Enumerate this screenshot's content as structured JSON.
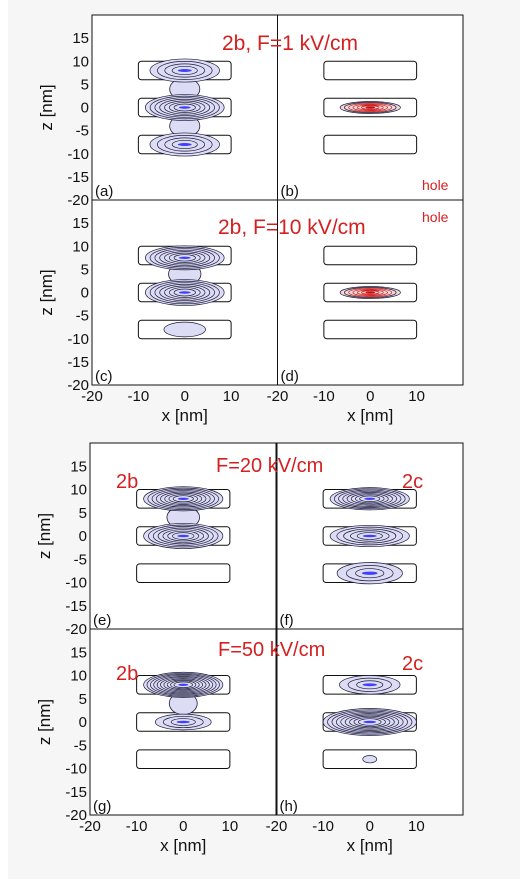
{
  "chart_data": {
    "type": "contour",
    "figures": [
      {
        "panels": [
          {
            "id": "a",
            "label": "(a)",
            "row": 0,
            "col": 0,
            "title": "2b, F=1 kV/cm",
            "particle": "electron",
            "blobs": [
              {
                "z": 8,
                "rx": 7.5,
                "rz": 2.5,
                "levels": 4
              },
              {
                "z": 0,
                "rx": 8.5,
                "rz": 2.8,
                "levels": 7
              },
              {
                "z": -8,
                "rx": 7.5,
                "rz": 2.5,
                "levels": 4
              }
            ],
            "neck": [
              {
                "z": 4,
                "w": 6.5
              },
              {
                "z": -4,
                "w": 6.5
              }
            ]
          },
          {
            "id": "b",
            "label": "(b)",
            "row": 0,
            "col": 1,
            "annotation": "hole",
            "particle": "hole",
            "blobs": [
              {
                "z": 0,
                "rx": 6.5,
                "rz": 1.3,
                "levels": 6
              }
            ],
            "neck": []
          },
          {
            "id": "c",
            "label": "(c)",
            "row": 1,
            "col": 0,
            "title": "2b, F=10 kV/cm",
            "particle": "electron",
            "blobs": [
              {
                "z": 7.5,
                "rx": 8.5,
                "rz": 2.6,
                "levels": 7
              },
              {
                "z": 0,
                "rx": 8.5,
                "rz": 2.8,
                "levels": 7
              },
              {
                "z": -8,
                "rx": 4.5,
                "rz": 1.6,
                "levels": 1
              }
            ],
            "neck": [
              {
                "z": 4,
                "w": 7
              }
            ]
          },
          {
            "id": "d",
            "label": "(d)",
            "row": 1,
            "col": 1,
            "annotation": "hole",
            "particle": "hole",
            "blobs": [
              {
                "z": 0,
                "rx": 6.5,
                "rz": 1.3,
                "levels": 6
              }
            ],
            "neck": []
          }
        ],
        "x_ticks": [
          "-20",
          "-10",
          "0",
          "10"
        ],
        "z_ticks": [
          "15",
          "10",
          "5",
          "0",
          "-5",
          "-10",
          "-15",
          "-20"
        ],
        "xlabel": "x [nm]",
        "ylabel": "z [nm]"
      },
      {
        "panels": [
          {
            "id": "e",
            "label": "(e)",
            "row": 0,
            "col": 0,
            "title": "F=20 kV/cm",
            "tag": "2b",
            "particle": "electron",
            "blobs": [
              {
                "z": 8,
                "rx": 8.5,
                "rz": 2.6,
                "levels": 8
              },
              {
                "z": 0,
                "rx": 8.5,
                "rz": 2.7,
                "levels": 7
              }
            ],
            "neck": [
              {
                "z": 4,
                "w": 7
              }
            ]
          },
          {
            "id": "f",
            "label": "(f)",
            "row": 0,
            "col": 1,
            "tag": "2c",
            "particle": "electron",
            "blobs": [
              {
                "z": 8,
                "rx": 8.5,
                "rz": 2.4,
                "levels": 8
              },
              {
                "z": 0,
                "rx": 8.5,
                "rz": 2.3,
                "levels": 5
              },
              {
                "z": -8,
                "rx": 7,
                "rz": 2.3,
                "levels": 3
              }
            ],
            "neck": []
          },
          {
            "id": "g",
            "label": "(g)",
            "row": 1,
            "col": 0,
            "title": "F=50 kV/cm",
            "tag": "2b",
            "particle": "electron",
            "blobs": [
              {
                "z": 8,
                "rx": 8.5,
                "rz": 2.7,
                "levels": 10
              },
              {
                "z": 0,
                "rx": 6,
                "rz": 1.7,
                "levels": 3
              }
            ],
            "neck": [
              {
                "z": 4,
                "w": 6
              }
            ]
          },
          {
            "id": "h",
            "label": "(h)",
            "row": 1,
            "col": 1,
            "tag": "2c",
            "particle": "electron",
            "blobs": [
              {
                "z": 8,
                "rx": 6.5,
                "rz": 2.0,
                "levels": 3
              },
              {
                "z": 0,
                "rx": 10,
                "rz": 2.9,
                "levels": 9
              },
              {
                "z": -8,
                "rx": 1.5,
                "rz": 0.8,
                "levels": 1
              }
            ],
            "neck": []
          }
        ],
        "x_ticks": [
          "-20",
          "-10",
          "0",
          "10"
        ],
        "z_ticks": [
          "15",
          "10",
          "5",
          "0",
          "-5",
          "-10",
          "-15",
          "-20"
        ],
        "xlabel": "x [nm]",
        "ylabel": "z [nm]"
      }
    ],
    "x_range": [
      -20,
      20
    ],
    "z_range": [
      -20,
      20
    ],
    "dot_boxes": [
      {
        "z_center": 8,
        "x_half": 10,
        "z_half": 2
      },
      {
        "z_center": 0,
        "x_half": 10,
        "z_half": 2
      },
      {
        "z_center": -8,
        "x_half": 10,
        "z_half": 2
      }
    ],
    "colors": {
      "electron_fill": "#dcdcf4",
      "electron_core": "#4040ff",
      "hole_core": "#cc1010",
      "contour": "#1a1a3a",
      "title": "#d42020"
    }
  }
}
